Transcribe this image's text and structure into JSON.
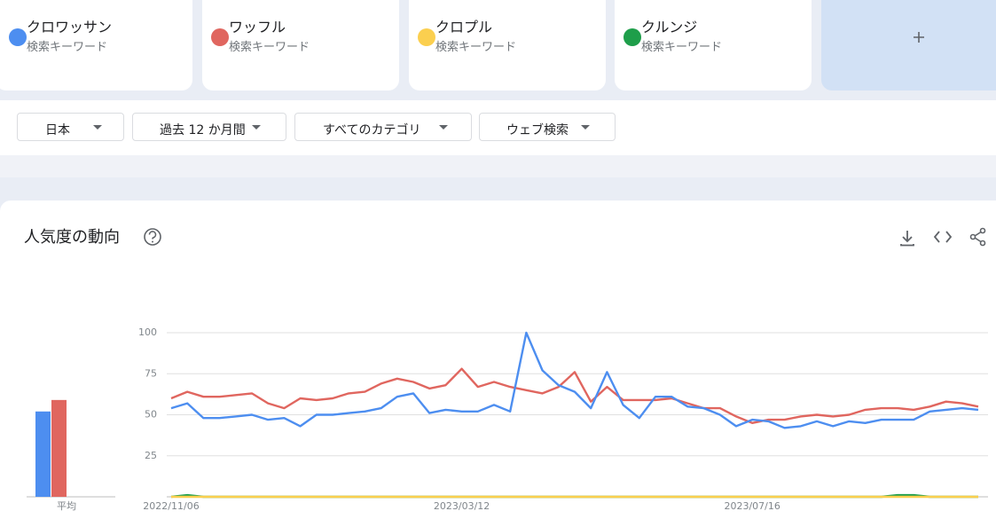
{
  "chart_data": {
    "type": "line",
    "title": "人気度の動向",
    "average_label": "平均",
    "categories": [
      "2022/11/06",
      null,
      null,
      null,
      null,
      null,
      null,
      null,
      null,
      null,
      null,
      null,
      null,
      null,
      null,
      null,
      null,
      null,
      "2023/03/12",
      null,
      null,
      null,
      null,
      null,
      null,
      null,
      null,
      null,
      null,
      null,
      null,
      null,
      null,
      null,
      null,
      null,
      "2023/07/16",
      null,
      null,
      null,
      null,
      null,
      null,
      null,
      null,
      null,
      null,
      null,
      null,
      null,
      null
    ],
    "ylim": [
      0,
      100
    ],
    "yticks": [
      25,
      50,
      75,
      100
    ],
    "grid": true,
    "series": [
      {
        "name": "クロワッサン",
        "subtitle": "検索キーワード",
        "color": "#4d8ef0",
        "average": 52,
        "values": [
          54,
          57,
          48,
          48,
          49,
          50,
          47,
          48,
          43,
          50,
          50,
          51,
          52,
          54,
          61,
          63,
          51,
          53,
          52,
          52,
          56,
          52,
          100,
          77,
          68,
          64,
          54,
          76,
          56,
          48,
          61,
          61,
          55,
          54,
          50,
          43,
          47,
          46,
          42,
          43,
          46,
          43,
          46,
          45,
          47,
          47,
          47,
          52,
          53,
          54,
          53
        ]
      },
      {
        "name": "ワッフル",
        "subtitle": "検索キーワード",
        "color": "#e0665f",
        "average": 59,
        "values": [
          60,
          64,
          61,
          61,
          62,
          63,
          57,
          54,
          60,
          59,
          60,
          63,
          64,
          69,
          72,
          70,
          66,
          68,
          78,
          67,
          70,
          67,
          65,
          63,
          67,
          76,
          58,
          67,
          59,
          59,
          59,
          60,
          57,
          54,
          54,
          49,
          45,
          47,
          47,
          49,
          50,
          49,
          50,
          53,
          54,
          54,
          53,
          55,
          58,
          57,
          55
        ]
      },
      {
        "name": "クロプル",
        "subtitle": "検索キーワード",
        "color": "#fbcf4f",
        "average": 0,
        "values": [
          0,
          0,
          0,
          0,
          0,
          0,
          0,
          0,
          0,
          0,
          0,
          0,
          0,
          0,
          0,
          0,
          0,
          0,
          0,
          0,
          0,
          0,
          0,
          0,
          0,
          0,
          0,
          0,
          0,
          0,
          0,
          0,
          0,
          0,
          0,
          0,
          0,
          0,
          0,
          0,
          0,
          0,
          0,
          0,
          0,
          0,
          0,
          0,
          0,
          0,
          0
        ]
      },
      {
        "name": "クルンジ",
        "subtitle": "検索キーワード",
        "color": "#1e9e4a",
        "average": 0,
        "values": [
          0,
          1,
          0,
          0,
          0,
          0,
          0,
          0,
          0,
          0,
          0,
          0,
          0,
          0,
          0,
          0,
          0,
          0,
          0,
          0,
          0,
          0,
          0,
          0,
          0,
          0,
          0,
          0,
          0,
          0,
          0,
          0,
          0,
          0,
          0,
          0,
          0,
          0,
          0,
          0,
          0,
          0,
          0,
          0,
          0,
          1,
          1,
          0,
          0,
          0,
          0
        ]
      }
    ]
  },
  "filters": [
    "日本",
    "過去 12 か月間",
    "すべてのカテゴリ",
    "ウェブ検索"
  ]
}
